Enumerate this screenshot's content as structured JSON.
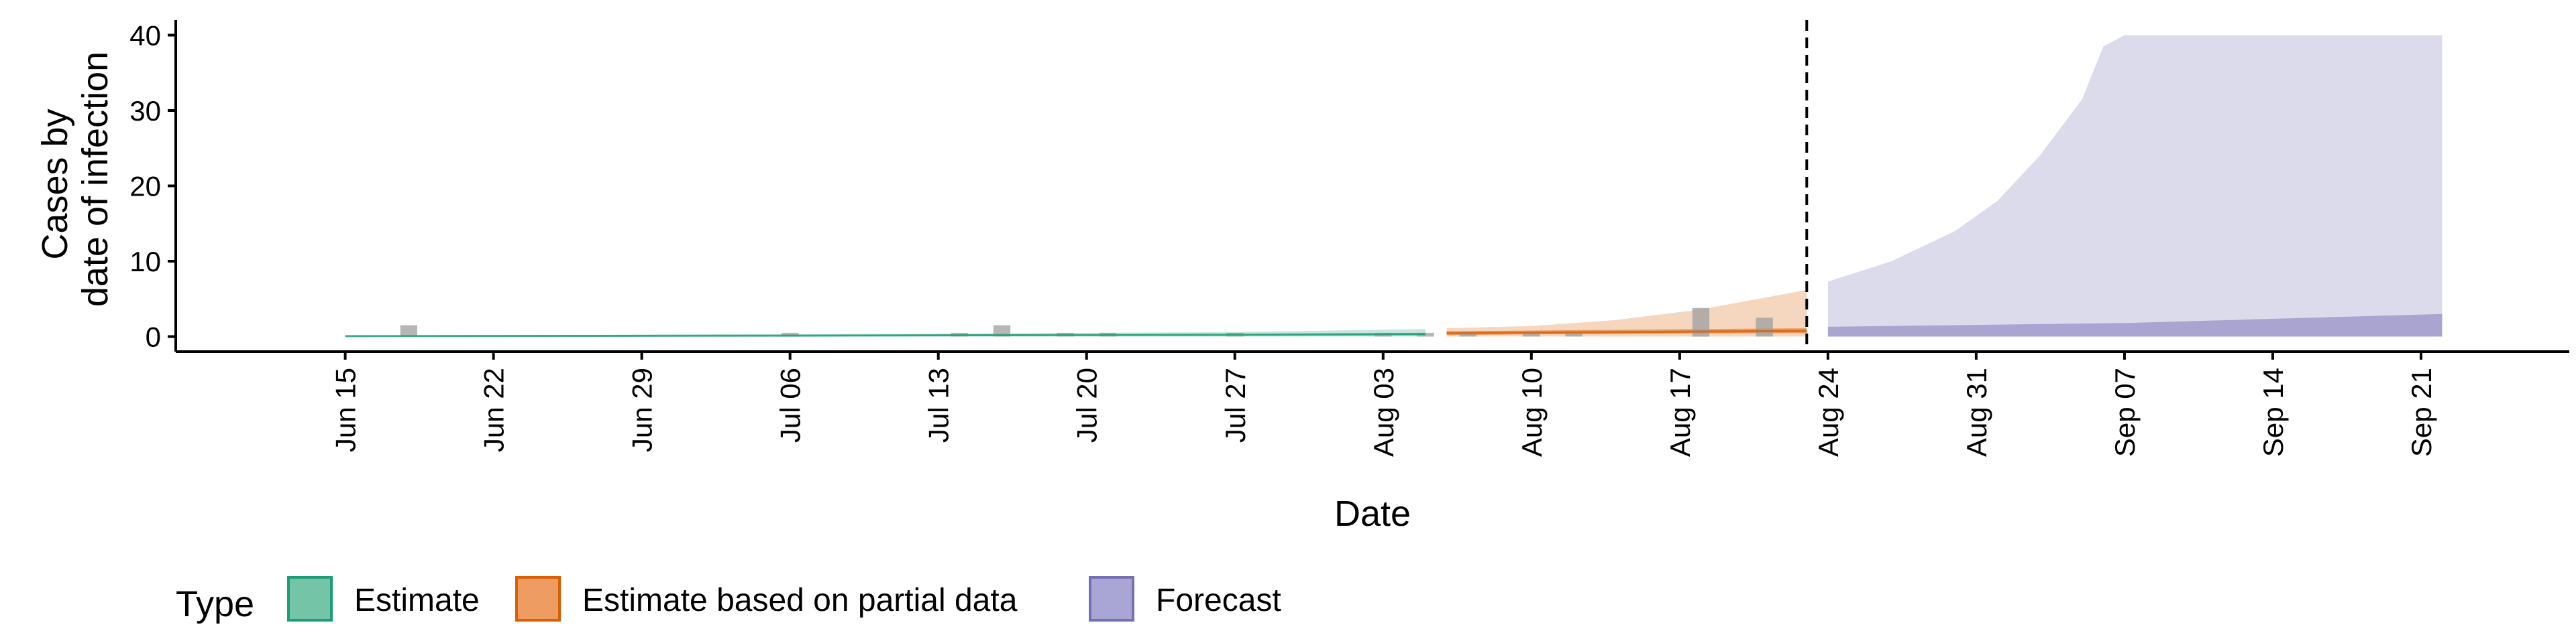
{
  "chart_data": {
    "type": "area",
    "xlabel": "Date",
    "ylabel": [
      "Cases by",
      "date of infection"
    ],
    "x_range": [
      "2020-06-07",
      "2020-09-28"
    ],
    "ylim": [
      -2,
      42
    ],
    "y_ticks": [
      0,
      10,
      20,
      30,
      40
    ],
    "x_ticks": [
      {
        "date": "2020-06-15",
        "label": "Jun 15"
      },
      {
        "date": "2020-06-22",
        "label": "Jun 22"
      },
      {
        "date": "2020-06-29",
        "label": "Jun 29"
      },
      {
        "date": "2020-07-06",
        "label": "Jul 06"
      },
      {
        "date": "2020-07-13",
        "label": "Jul 13"
      },
      {
        "date": "2020-07-20",
        "label": "Jul 20"
      },
      {
        "date": "2020-07-27",
        "label": "Jul 27"
      },
      {
        "date": "2020-08-03",
        "label": "Aug 03"
      },
      {
        "date": "2020-08-10",
        "label": "Aug 10"
      },
      {
        "date": "2020-08-17",
        "label": "Aug 17"
      },
      {
        "date": "2020-08-24",
        "label": "Aug 24"
      },
      {
        "date": "2020-08-31",
        "label": "Aug 31"
      },
      {
        "date": "2020-09-07",
        "label": "Sep 07"
      },
      {
        "date": "2020-09-14",
        "label": "Sep 14"
      },
      {
        "date": "2020-09-21",
        "label": "Sep 21"
      }
    ],
    "grid": false,
    "vline_date": "2020-08-23",
    "legend": {
      "title": "Type",
      "position": "bottom",
      "entries": [
        {
          "label": "Estimate",
          "fill": "#74C4A8",
          "stroke": "#1B9E77"
        },
        {
          "label": "Estimate based on partial data",
          "fill": "#EE9C62",
          "stroke": "#D95F02"
        },
        {
          "label": "Forecast",
          "fill": "#A9A6D6",
          "stroke": "#7570B3"
        }
      ]
    },
    "observed_cases": {
      "color": "#9E9E9E",
      "points": [
        {
          "date": "2020-06-18",
          "value": 1.5
        },
        {
          "date": "2020-07-06",
          "value": 0.5
        },
        {
          "date": "2020-07-14",
          "value": 0.5
        },
        {
          "date": "2020-07-16",
          "value": 1.5
        },
        {
          "date": "2020-07-19",
          "value": 0.5
        },
        {
          "date": "2020-07-21",
          "value": 0.5
        },
        {
          "date": "2020-07-27",
          "value": 0.5
        },
        {
          "date": "2020-08-03",
          "value": 0.5
        },
        {
          "date": "2020-08-05",
          "value": 0.5
        },
        {
          "date": "2020-08-07",
          "value": 0.5
        },
        {
          "date": "2020-08-10",
          "value": 0.5
        },
        {
          "date": "2020-08-12",
          "value": 0.5
        },
        {
          "date": "2020-08-18",
          "value": 3.8
        },
        {
          "date": "2020-08-21",
          "value": 2.5
        }
      ]
    },
    "series": [
      {
        "type": "Estimate",
        "color": "#1B9E77",
        "outer": [
          {
            "date": "2020-06-15",
            "lo": 0,
            "hi": 0.15
          },
          {
            "date": "2020-07-06",
            "lo": 0,
            "hi": 0.3
          },
          {
            "date": "2020-07-27",
            "lo": 0,
            "hi": 0.6
          },
          {
            "date": "2020-08-05",
            "lo": 0,
            "hi": 1.0
          }
        ],
        "inner": [
          {
            "date": "2020-06-15",
            "lo": 0,
            "hi": 0.08
          },
          {
            "date": "2020-07-06",
            "lo": 0.05,
            "hi": 0.2
          },
          {
            "date": "2020-07-27",
            "lo": 0.1,
            "hi": 0.35
          },
          {
            "date": "2020-08-05",
            "lo": 0.15,
            "hi": 0.5
          }
        ],
        "median": [
          {
            "date": "2020-06-15",
            "value": 0.05
          },
          {
            "date": "2020-07-06",
            "value": 0.12
          },
          {
            "date": "2020-07-27",
            "value": 0.25
          },
          {
            "date": "2020-08-05",
            "value": 0.35
          }
        ]
      },
      {
        "type": "Estimate based on partial data",
        "color": "#D95F02",
        "outer": [
          {
            "date": "2020-08-06",
            "lo": 0,
            "hi": 1.1
          },
          {
            "date": "2020-08-10",
            "lo": 0,
            "hi": 1.4
          },
          {
            "date": "2020-08-14",
            "lo": 0,
            "hi": 2.2
          },
          {
            "date": "2020-08-18",
            "lo": 0,
            "hi": 3.6
          },
          {
            "date": "2020-08-23",
            "lo": 0,
            "hi": 6.2
          }
        ],
        "inner": [
          {
            "date": "2020-08-06",
            "lo": 0.2,
            "hi": 0.7
          },
          {
            "date": "2020-08-10",
            "lo": 0.3,
            "hi": 0.8
          },
          {
            "date": "2020-08-14",
            "lo": 0.35,
            "hi": 0.9
          },
          {
            "date": "2020-08-18",
            "lo": 0.4,
            "hi": 1.0
          },
          {
            "date": "2020-08-23",
            "lo": 0.45,
            "hi": 1.1
          }
        ],
        "median": [
          {
            "date": "2020-08-06",
            "value": 0.45
          },
          {
            "date": "2020-08-23",
            "value": 0.75
          }
        ]
      },
      {
        "type": "Forecast",
        "color": "#7570B3",
        "outer": [
          {
            "date": "2020-08-24",
            "lo": 0,
            "hi": 7.3
          },
          {
            "date": "2020-08-27",
            "lo": 0,
            "hi": 10
          },
          {
            "date": "2020-08-30",
            "lo": 0,
            "hi": 14
          },
          {
            "date": "2020-09-01",
            "lo": 0,
            "hi": 18
          },
          {
            "date": "2020-09-03",
            "lo": 0,
            "hi": 24
          },
          {
            "date": "2020-09-05",
            "lo": 0,
            "hi": 31.5
          },
          {
            "date": "2020-09-06",
            "lo": 0,
            "hi": 38.5
          },
          {
            "date": "2020-09-07",
            "lo": 0,
            "hi": 40
          },
          {
            "date": "2020-09-22",
            "lo": 0,
            "hi": 40
          }
        ],
        "inner": [
          {
            "date": "2020-08-24",
            "lo": 0,
            "hi": 1.3
          },
          {
            "date": "2020-09-07",
            "lo": 0,
            "hi": 1.8
          },
          {
            "date": "2020-09-22",
            "lo": 0,
            "hi": 3.0
          }
        ],
        "median": []
      }
    ]
  }
}
